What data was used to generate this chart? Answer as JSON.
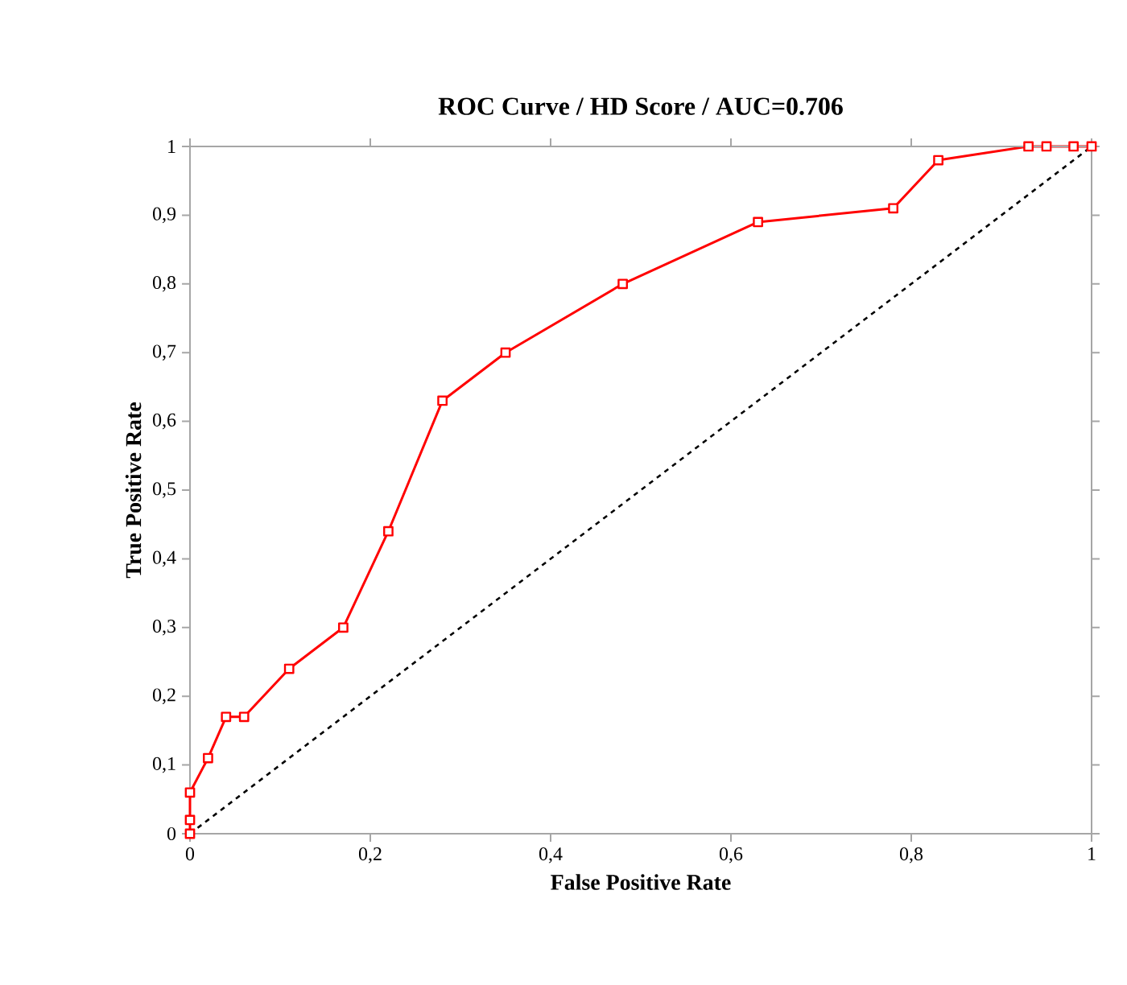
{
  "chart_data": {
    "type": "line",
    "title": "ROC Curve / HD Score / AUC=0.706",
    "xlabel": "False Positive Rate",
    "ylabel": "True Positive Rate",
    "xlim": [
      0,
      1
    ],
    "ylim": [
      0,
      1
    ],
    "xticks": [
      0,
      {
        "value": 0.2,
        "label": "0,2"
      },
      {
        "value": 0.4,
        "label": "0,4"
      },
      {
        "value": 0.6,
        "label": "0,6"
      },
      {
        "value": 0.8,
        "label": "0,8"
      },
      1
    ],
    "yticks": [
      0,
      {
        "value": 0.1,
        "label": "0,1"
      },
      {
        "value": 0.2,
        "label": "0,2"
      },
      {
        "value": 0.3,
        "label": "0,3"
      },
      {
        "value": 0.4,
        "label": "0,4"
      },
      {
        "value": 0.5,
        "label": "0,5"
      },
      {
        "value": 0.6,
        "label": "0,6"
      },
      {
        "value": 0.7,
        "label": "0,7"
      },
      {
        "value": 0.8,
        "label": "0,8"
      },
      {
        "value": 0.9,
        "label": "0,9"
      },
      1
    ],
    "grid": false,
    "series": [
      {
        "color": "#ff0000",
        "marker": "square",
        "line_style": "solid",
        "x": [
          0,
          0,
          0,
          0.02,
          0.04,
          0.06,
          0.11,
          0.17,
          0.22,
          0.28,
          0.35,
          0.48,
          0.63,
          0.78,
          0.83,
          0.93,
          0.95,
          0.98,
          1
        ],
        "values": [
          0,
          0.02,
          0.06,
          0.11,
          0.17,
          0.17,
          0.24,
          0.3,
          0.44,
          0.63,
          0.7,
          0.8,
          0.89,
          0.91,
          0.98,
          1,
          1,
          1,
          1
        ]
      },
      {
        "color": "#000000",
        "marker": "none",
        "line_style": "dashed",
        "x": [
          0,
          1
        ],
        "values": [
          0,
          1
        ]
      }
    ]
  }
}
